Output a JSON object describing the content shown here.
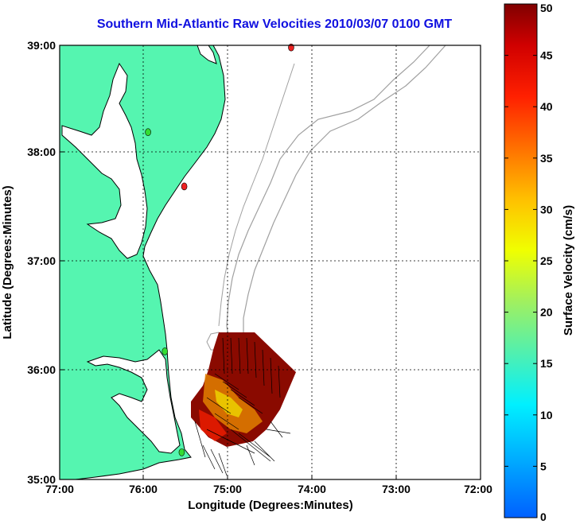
{
  "title": "Southern Mid-Atlantic Raw Velocities 2010/03/07 0100 GMT",
  "axes": {
    "xlabel": "Longitude (Degrees:Minutes)",
    "ylabel": "Latitude (Degrees:Minutes)",
    "x_ticks": [
      "77:00",
      "76:00",
      "75:00",
      "74:00",
      "73:00",
      "72:00"
    ],
    "y_ticks": [
      "39:00",
      "38:00",
      "37:00",
      "36:00",
      "35:00"
    ]
  },
  "colorbar": {
    "label": "Surface Velocity (cm/s)",
    "ticks": [
      "50",
      "45",
      "40",
      "35",
      "30",
      "25",
      "20",
      "15",
      "10",
      "5",
      "0"
    ],
    "min": 0,
    "max": 50
  },
  "colors": {
    "land": "#55f5b0",
    "coast": "#000000",
    "bathymetry": "#a0a0a0",
    "title": "#1010e0",
    "station_green": "#33dd33",
    "station_red": "#ee2222"
  },
  "stations": [
    {
      "name": "green-station",
      "lon": -75.95,
      "lat": 38.2
    },
    {
      "name": "red-station",
      "lon": -75.52,
      "lat": 37.7
    },
    {
      "name": "red-station",
      "lon": -74.25,
      "lat": 38.98
    },
    {
      "name": "green-station",
      "lon": -75.75,
      "lat": 36.18
    },
    {
      "name": "green-station",
      "lon": -75.55,
      "lat": 35.25
    }
  ]
}
